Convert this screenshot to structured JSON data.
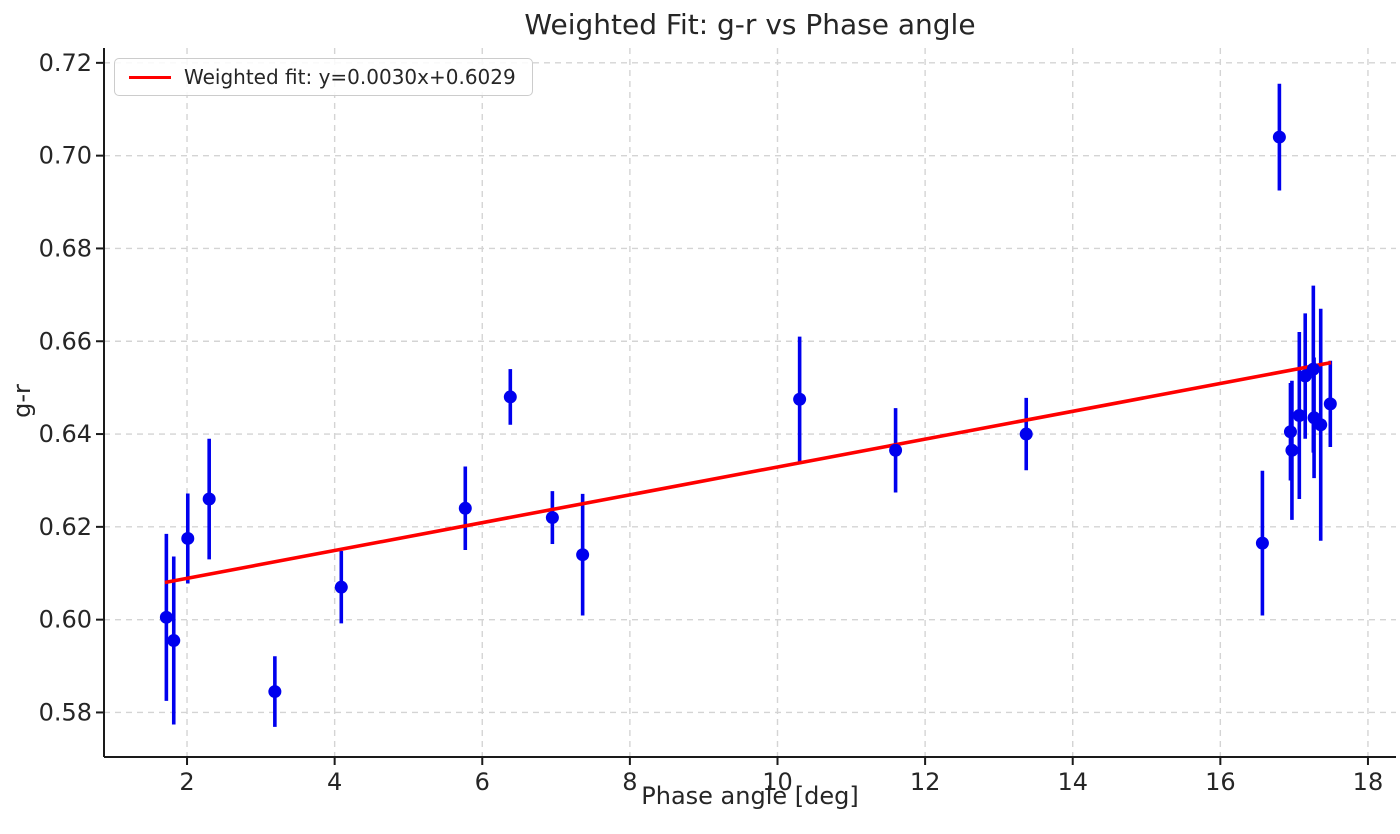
{
  "chart_data": {
    "type": "scatter",
    "title": "Weighted Fit: g-r vs Phase angle",
    "xlabel": "Phase angle [deg]",
    "ylabel": "g-r",
    "xlim": [
      0.875,
      18.38
    ],
    "ylim": [
      0.5704,
      0.7232
    ],
    "x_ticks": [
      2,
      4,
      6,
      8,
      10,
      12,
      14,
      16,
      18
    ],
    "y_ticks": [
      0.58,
      0.6,
      0.62,
      0.64,
      0.66,
      0.68,
      0.7,
      0.72
    ],
    "grid": true,
    "legend": {
      "position": "upper-left",
      "label": "Weighted fit: y=0.0030x+0.6029"
    },
    "fit": {
      "slope": 0.003,
      "intercept": 0.6029,
      "x_start": 1.7,
      "x_end": 17.5
    },
    "points": [
      {
        "x": 1.72,
        "y": 0.6005,
        "yerr": 0.018
      },
      {
        "x": 1.82,
        "y": 0.5955,
        "yerr": 0.0181
      },
      {
        "x": 2.01,
        "y": 0.6175,
        "yerr": 0.0097
      },
      {
        "x": 2.3,
        "y": 0.626,
        "yerr": 0.013
      },
      {
        "x": 3.19,
        "y": 0.5845,
        "yerr": 0.0076
      },
      {
        "x": 4.09,
        "y": 0.607,
        "yerr": 0.0078
      },
      {
        "x": 5.77,
        "y": 0.624,
        "yerr": 0.009
      },
      {
        "x": 6.38,
        "y": 0.648,
        "yerr": 0.006
      },
      {
        "x": 6.95,
        "y": 0.622,
        "yerr": 0.0057
      },
      {
        "x": 7.36,
        "y": 0.614,
        "yerr": 0.0131
      },
      {
        "x": 10.3,
        "y": 0.6475,
        "yerr": 0.0135
      },
      {
        "x": 11.6,
        "y": 0.6365,
        "yerr": 0.0091
      },
      {
        "x": 13.37,
        "y": 0.64,
        "yerr": 0.0078
      },
      {
        "x": 16.57,
        "y": 0.6165,
        "yerr": 0.0156
      },
      {
        "x": 16.8,
        "y": 0.704,
        "yerr": 0.0115
      },
      {
        "x": 16.95,
        "y": 0.6405,
        "yerr": 0.0105
      },
      {
        "x": 16.97,
        "y": 0.6365,
        "yerr": 0.015
      },
      {
        "x": 17.07,
        "y": 0.644,
        "yerr": 0.018
      },
      {
        "x": 17.15,
        "y": 0.6525,
        "yerr": 0.0135
      },
      {
        "x": 17.26,
        "y": 0.654,
        "yerr": 0.018
      },
      {
        "x": 17.27,
        "y": 0.6435,
        "yerr": 0.013
      },
      {
        "x": 17.36,
        "y": 0.642,
        "yerr": 0.025
      },
      {
        "x": 17.49,
        "y": 0.6465,
        "yerr": 0.0093
      }
    ],
    "colors": {
      "point": "#0000ee",
      "fit": "#ff0000",
      "grid": "#d4d4d4",
      "axis": "#1a1a1a",
      "text": "#262626"
    }
  }
}
